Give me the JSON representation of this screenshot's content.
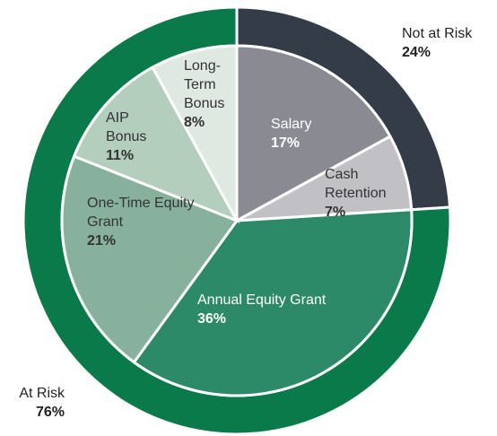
{
  "chart_data": {
    "type": "pie",
    "rings": [
      {
        "categories": [
          "Not at Risk",
          "At Risk"
        ],
        "values": [
          24,
          76
        ],
        "value_labels": [
          "24%",
          "76%"
        ],
        "colors": [
          "#343d47",
          "#0b7a4b"
        ]
      },
      {
        "categories": [
          "Salary",
          "Cash Retention",
          "Annual Equity Grant",
          "One-Time Equity Grant",
          "AIP Bonus",
          "Long-Term Bonus"
        ],
        "values": [
          17,
          7,
          36,
          21,
          11,
          8
        ],
        "value_labels": [
          "17%",
          "7%",
          "36%",
          "21%",
          "11%",
          "8%"
        ],
        "colors": [
          "#8a8a92",
          "#c1c0c5",
          "#2d8a68",
          "#87b19d",
          "#b4cebe",
          "#dfe8e1"
        ]
      }
    ]
  }
}
